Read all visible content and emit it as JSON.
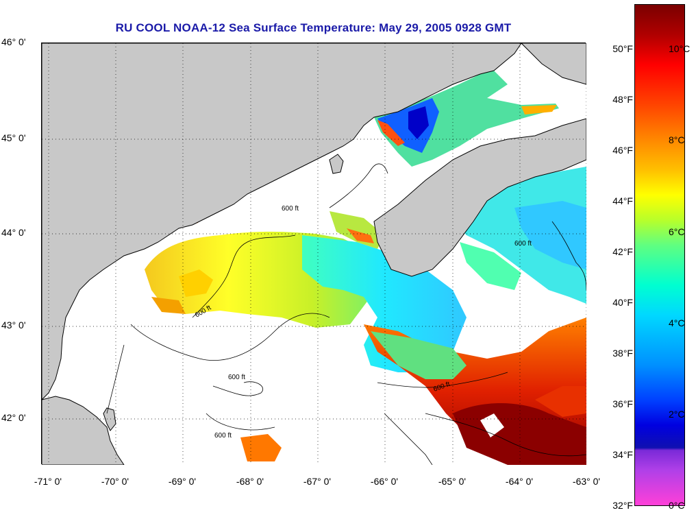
{
  "title": "RU COOL  NOAA-12  Sea Surface Temperature:  May 29, 2005 0928 GMT",
  "lat_labels": [
    "46° 0'",
    "45° 0'",
    "44° 0'",
    "43° 0'",
    "42° 0'"
  ],
  "lon_labels": [
    "-71° 0'",
    "-70° 0'",
    "-69° 0'",
    "-68° 0'",
    "-67° 0'",
    "-66° 0'",
    "-65° 0'",
    "-64° 0'",
    "-63° 0'"
  ],
  "contour_label": "600 ft",
  "colorbar": {
    "fahrenheit": [
      "50°F",
      "48°F",
      "46°F",
      "44°F",
      "42°F",
      "40°F",
      "38°F",
      "36°F",
      "34°F",
      "32°F"
    ],
    "celsius": [
      "10°C",
      "8°C",
      "6°C",
      "4°C",
      "2°C",
      "0°C"
    ]
  },
  "colors": {
    "title": "#1a1aa8",
    "land": "#c8c8c8",
    "water_nodata": "#ffffff",
    "warm": "#8b0000",
    "cold": "#0000e0"
  }
}
